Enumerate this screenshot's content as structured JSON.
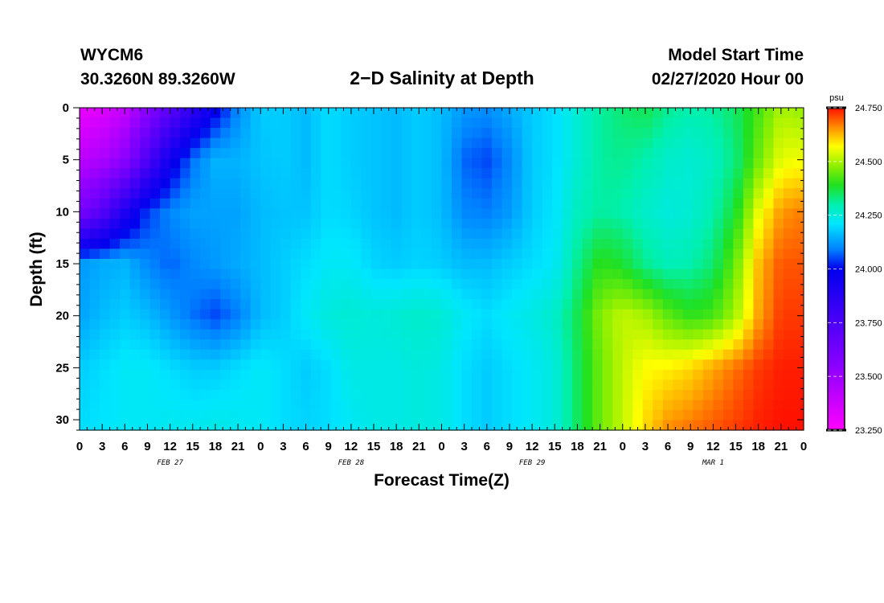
{
  "header": {
    "station": "WYCM6",
    "coords": "30.3260N 89.3260W",
    "title": "2−D Salinity at Depth",
    "model_start_label": "Model Start Time",
    "model_start_value": "02/27/2020 Hour 00"
  },
  "chart_data": {
    "type": "heatmap",
    "title": "2−D Salinity at Depth",
    "xlabel": "Forecast Time(Z)",
    "ylabel": "Depth (ft)",
    "x_tick_labels": [
      "0",
      "3",
      "6",
      "9",
      "12",
      "15",
      "18",
      "21",
      "0",
      "3",
      "6",
      "9",
      "12",
      "15",
      "18",
      "21",
      "0",
      "3",
      "6",
      "9",
      "12",
      "15",
      "18",
      "21",
      "0",
      "3",
      "6",
      "9",
      "12",
      "15",
      "18",
      "21",
      "0"
    ],
    "x_range_hours": [
      0,
      96
    ],
    "day_labels": [
      {
        "label": "FEB 27",
        "hour": 12
      },
      {
        "label": "FEB 28",
        "hour": 36
      },
      {
        "label": "FEB 29",
        "hour": 60
      },
      {
        "label": "MAR 1",
        "hour": 84
      }
    ],
    "y_ticks": [
      0,
      5,
      10,
      15,
      20,
      25,
      30
    ],
    "y_range": [
      0,
      31
    ],
    "y_inverted": true,
    "colorbar": {
      "unit": "psu",
      "ticks": [
        "23.250",
        "23.500",
        "23.750",
        "24.000",
        "24.250",
        "24.500",
        "24.750"
      ],
      "range": [
        23.25,
        24.75
      ]
    },
    "hours": [
      0,
      3,
      6,
      9,
      12,
      15,
      18,
      21,
      24,
      27,
      30,
      33,
      36,
      39,
      42,
      45,
      48,
      51,
      54,
      57,
      60,
      63,
      66,
      69,
      72,
      75,
      78,
      81,
      84,
      87,
      90,
      93,
      96
    ],
    "depths_ft": [
      0,
      5,
      10,
      15,
      20,
      25,
      31
    ],
    "salinity_psu": [
      [
        23.3,
        23.33,
        23.4,
        23.55,
        23.7,
        23.85,
        23.98,
        24.1,
        24.18,
        24.18,
        24.16,
        24.2,
        24.18,
        24.17,
        24.16,
        24.18,
        24.16,
        24.12,
        24.11,
        24.14,
        24.18,
        24.2,
        24.26,
        24.31,
        24.34,
        24.36,
        24.32,
        24.3,
        24.31,
        24.35,
        24.42,
        24.5,
        24.48
      ],
      [
        23.42,
        23.46,
        23.55,
        23.75,
        23.95,
        24.08,
        24.15,
        24.15,
        24.17,
        24.18,
        24.16,
        24.2,
        24.18,
        24.17,
        24.16,
        24.18,
        24.16,
        24.07,
        24.05,
        24.1,
        24.18,
        24.2,
        24.26,
        24.31,
        24.32,
        24.3,
        24.27,
        24.26,
        24.28,
        24.33,
        24.45,
        24.55,
        24.56
      ],
      [
        23.6,
        23.72,
        23.9,
        24.04,
        24.1,
        24.13,
        24.13,
        24.13,
        24.16,
        24.17,
        24.17,
        24.2,
        24.19,
        24.17,
        24.16,
        24.18,
        24.16,
        24.1,
        24.09,
        24.12,
        24.18,
        24.21,
        24.28,
        24.31,
        24.3,
        24.27,
        24.25,
        24.26,
        24.3,
        24.38,
        24.55,
        24.65,
        24.67
      ],
      [
        24.12,
        24.14,
        24.15,
        24.1,
        24.07,
        24.1,
        24.12,
        24.14,
        24.16,
        24.18,
        24.2,
        24.22,
        24.22,
        24.19,
        24.18,
        24.19,
        24.18,
        24.16,
        24.16,
        24.18,
        24.2,
        24.22,
        24.32,
        24.4,
        24.38,
        24.32,
        24.29,
        24.3,
        24.34,
        24.45,
        24.62,
        24.7,
        24.7
      ],
      [
        24.13,
        24.16,
        24.18,
        24.16,
        24.12,
        24.08,
        24.05,
        24.09,
        24.16,
        24.18,
        24.22,
        24.25,
        24.26,
        24.25,
        24.26,
        24.27,
        24.26,
        24.22,
        24.2,
        24.22,
        24.24,
        24.27,
        24.36,
        24.47,
        24.52,
        24.5,
        24.44,
        24.4,
        24.42,
        24.5,
        24.64,
        24.72,
        24.72
      ],
      [
        24.18,
        24.2,
        24.22,
        24.22,
        24.2,
        24.18,
        24.18,
        24.2,
        24.22,
        24.2,
        24.18,
        24.2,
        24.24,
        24.24,
        24.24,
        24.25,
        24.24,
        24.2,
        24.18,
        24.2,
        24.22,
        24.25,
        24.35,
        24.45,
        24.52,
        24.57,
        24.58,
        24.6,
        24.64,
        24.68,
        24.72,
        24.74,
        24.74
      ],
      [
        24.2,
        24.21,
        24.22,
        24.22,
        24.23,
        24.23,
        24.24,
        24.23,
        24.22,
        24.2,
        24.19,
        24.2,
        24.22,
        24.24,
        24.24,
        24.25,
        24.24,
        24.2,
        24.18,
        24.2,
        24.22,
        24.25,
        24.35,
        24.45,
        24.52,
        24.6,
        24.66,
        24.68,
        24.7,
        24.72,
        24.74,
        24.75,
        24.75
      ]
    ]
  }
}
